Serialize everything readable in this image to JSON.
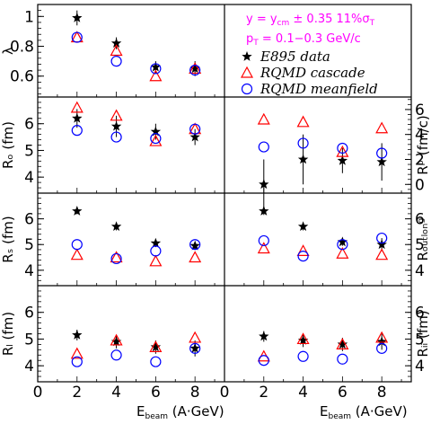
{
  "colors": {
    "e895": "#000000",
    "cascade": "#ff0000",
    "meanfield": "#0000ff",
    "annotation": "#ff00ff"
  },
  "annotation": {
    "line1": "y = yₐₘ ± 0.35   11%σₜ",
    "line2": "pₜ = 0.1−0.3 GeV/c"
  },
  "legend": [
    {
      "key": "e895",
      "label": "E895 data",
      "marker": "star"
    },
    {
      "key": "cascade",
      "label": "RQMD cascade",
      "marker": "triangle"
    },
    {
      "key": "meanfield",
      "label": "RQMD meanfield",
      "marker": "circle"
    }
  ],
  "xaxis": {
    "label": "Eᵇᵉᵃᵐ (A·GeV)",
    "ticks": [
      "0",
      "2",
      "4",
      "6",
      "8"
    ],
    "lim": [
      0,
      9.5
    ]
  },
  "chart_data": [
    {
      "type": "scatter",
      "ylabel": "λ",
      "ylim": [
        0.46,
        1.08
      ],
      "yticks": [
        "0.6",
        "0.8",
        "1"
      ],
      "x": [
        2,
        4,
        6,
        8
      ],
      "series": [
        {
          "name": "E895 data",
          "values": [
            0.99,
            0.82,
            0.66,
            0.65
          ],
          "errors": [
            0.05,
            0.04,
            0.04,
            0.05
          ]
        },
        {
          "name": "RQMD cascade",
          "values": [
            0.86,
            0.77,
            0.6,
            0.65
          ]
        },
        {
          "name": "RQMD meanfield",
          "values": [
            0.86,
            0.7,
            0.65,
            0.64
          ]
        }
      ]
    },
    {
      "type": "scatter",
      "ylabel": "Rₒ (fm)",
      "ylim": [
        3.4,
        7.0
      ],
      "yticks": [
        "4",
        "5",
        "6"
      ],
      "x": [
        2,
        4,
        6,
        8
      ],
      "series": [
        {
          "name": "E895 data",
          "values": [
            6.2,
            5.9,
            5.7,
            5.5
          ],
          "errors": [
            0.35,
            0.4,
            0.3,
            0.3
          ]
        },
        {
          "name": "RQMD cascade",
          "values": [
            6.6,
            6.3,
            5.35,
            5.8
          ]
        },
        {
          "name": "RQMD meanfield",
          "values": [
            5.75,
            5.5,
            5.45,
            5.8
          ]
        }
      ]
    },
    {
      "type": "scatter",
      "ylabel": "Rᵖ (fm/c)",
      "ylim": [
        -0.7,
        7.0
      ],
      "yticks": [
        "0",
        "2",
        "4",
        "6"
      ],
      "x": [
        2,
        4,
        6,
        8
      ],
      "series": [
        {
          "name": "E895 data",
          "values": [
            0.0,
            2.0,
            1.9,
            1.8
          ],
          "errors": [
            2.0,
            2.0,
            1.0,
            1.5
          ]
        },
        {
          "name": "RQMD cascade",
          "values": [
            5.2,
            5.0,
            2.6,
            4.5
          ]
        },
        {
          "name": "RQMD meanfield",
          "values": [
            3.0,
            3.3,
            2.9,
            2.5
          ]
        }
      ]
    },
    {
      "type": "scatter",
      "ylabel": "Rₛ (fm)",
      "ylim": [
        3.4,
        7.0
      ],
      "yticks": [
        "4",
        "5",
        "6"
      ],
      "x": [
        2,
        4,
        6,
        8
      ],
      "series": [
        {
          "name": "E895 data",
          "values": [
            6.3,
            5.7,
            5.05,
            4.95
          ],
          "errors": [
            0.12,
            0.15,
            0.15,
            0.15
          ]
        },
        {
          "name": "RQMD cascade",
          "values": [
            4.6,
            4.5,
            4.35,
            4.5
          ]
        },
        {
          "name": "RQMD meanfield",
          "values": [
            5.0,
            4.45,
            4.75,
            5.0
          ]
        }
      ]
    },
    {
      "type": "scatter",
      "ylabel": "Rₒᵤₜₗₒₙᵍ",
      "ylim": [
        3.4,
        7.0
      ],
      "yticks": [
        "4",
        "5",
        "6"
      ],
      "x": [
        2,
        4,
        6,
        8
      ],
      "series": [
        {
          "name": "E895 data",
          "values": [
            6.3,
            5.7,
            5.1,
            5.0
          ],
          "errors": [
            0.15,
            0.15,
            0.15,
            0.25
          ]
        },
        {
          "name": "RQMD cascade",
          "values": [
            4.85,
            4.75,
            4.65,
            4.6
          ]
        },
        {
          "name": "RQMD meanfield",
          "values": [
            5.15,
            4.55,
            5.0,
            5.25
          ]
        }
      ]
    },
    {
      "type": "scatter",
      "ylabel": "Rₗ (fm)",
      "ylim": [
        3.4,
        7.0
      ],
      "yticks": [
        "4",
        "5",
        "6"
      ],
      "x": [
        2,
        4,
        6,
        8
      ],
      "series": [
        {
          "name": "E895 data",
          "values": [
            5.15,
            4.9,
            4.7,
            4.65
          ],
          "errors": [
            0.2,
            0.25,
            0.25,
            0.3
          ]
        },
        {
          "name": "RQMD cascade",
          "values": [
            4.45,
            4.95,
            4.7,
            5.05
          ]
        },
        {
          "name": "RQMD meanfield",
          "values": [
            4.15,
            4.4,
            4.15,
            4.65
          ]
        }
      ]
    },
    {
      "type": "scatter",
      "ylabel": "Rᵢᵢ (fm)",
      "ylim": [
        3.4,
        7.0
      ],
      "yticks": [
        "4",
        "5",
        "6"
      ],
      "x": [
        2,
        4,
        6,
        8
      ],
      "series": [
        {
          "name": "E895 data",
          "values": [
            5.1,
            4.95,
            4.8,
            4.9
          ],
          "errors": [
            0.2,
            0.25,
            0.25,
            0.3
          ]
        },
        {
          "name": "RQMD cascade",
          "values": [
            4.35,
            5.0,
            4.8,
            5.05
          ]
        },
        {
          "name": "RQMD meanfield",
          "values": [
            4.2,
            4.35,
            4.25,
            4.65
          ]
        }
      ]
    }
  ]
}
